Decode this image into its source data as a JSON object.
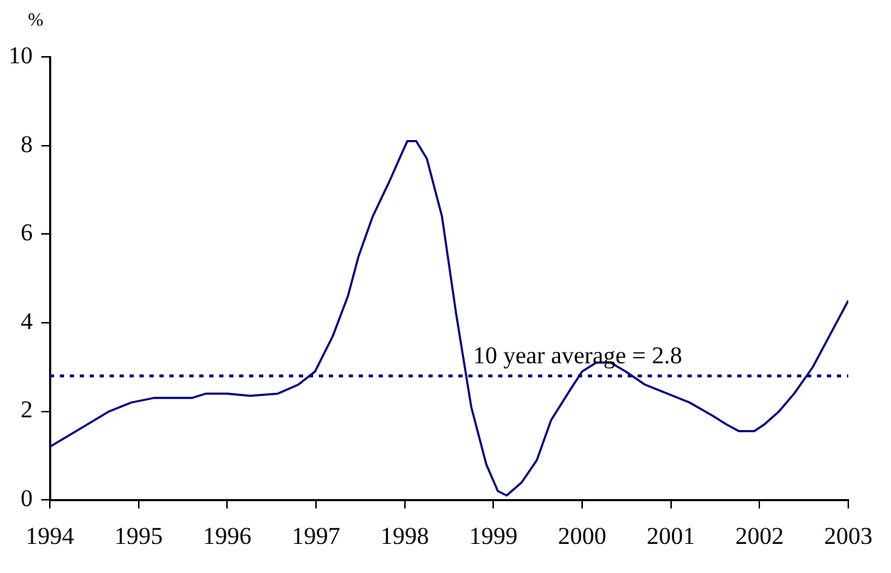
{
  "chart_data": {
    "type": "line",
    "ylabel": "%",
    "x": [
      1994.0,
      1994.42,
      1994.67,
      1994.92,
      1995.17,
      1995.6,
      1995.76,
      1996.0,
      1996.26,
      1996.57,
      1996.8,
      1996.99,
      1997.19,
      1997.36,
      1997.48,
      1997.64,
      1997.83,
      1997.94,
      1998.03,
      1998.13,
      1998.25,
      1998.42,
      1998.58,
      1998.75,
      1998.92,
      1999.05,
      1999.15,
      1999.32,
      1999.49,
      1999.65,
      1999.87,
      2000.0,
      2000.16,
      2000.32,
      2000.49,
      2000.71,
      2000.96,
      2001.21,
      2001.47,
      2001.63,
      2001.77,
      2001.94,
      2002.05,
      2002.22,
      2002.39,
      2002.6,
      2002.76,
      2003.0
    ],
    "series": [
      {
        "color": "#000080",
        "values": [
          1.2,
          1.7,
          2.0,
          2.2,
          2.3,
          2.3,
          2.4,
          2.4,
          2.35,
          2.4,
          2.6,
          2.9,
          3.7,
          4.6,
          5.5,
          6.4,
          7.2,
          7.7,
          8.1,
          8.1,
          7.7,
          6.4,
          4.2,
          2.1,
          0.8,
          0.2,
          0.1,
          0.4,
          0.9,
          1.8,
          2.5,
          2.9,
          3.1,
          3.1,
          2.9,
          2.6,
          2.4,
          2.2,
          1.9,
          1.7,
          1.55,
          1.55,
          1.7,
          2.0,
          2.4,
          3.0,
          3.6,
          4.5
        ]
      }
    ],
    "xlim": [
      1994,
      2003
    ],
    "xticks": [
      1994,
      1995,
      1996,
      1997,
      1998,
      1999,
      2000,
      2001,
      2002,
      2003
    ],
    "ylim": [
      0,
      10
    ],
    "yticks": [
      0,
      2,
      4,
      6,
      8,
      10
    ],
    "ref_lines": [
      {
        "axis": "y",
        "value": 2.8,
        "label": "10 year average = 2.8",
        "color": "#000080",
        "line_style": "dotted"
      }
    ],
    "grid": false,
    "legend": false,
    "marker": "none",
    "line_style": "solid"
  }
}
